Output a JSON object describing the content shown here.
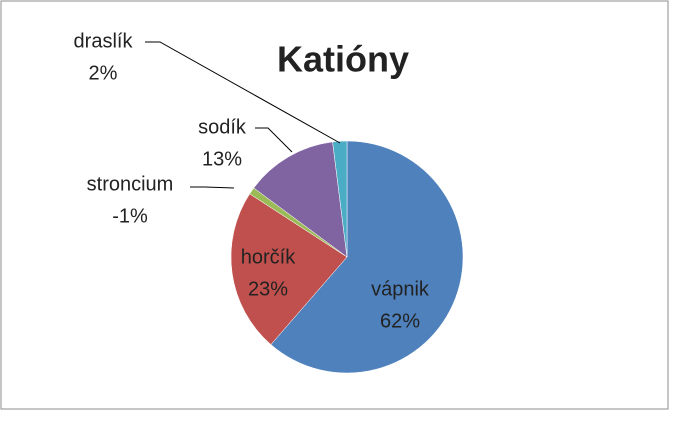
{
  "chart_data": {
    "type": "pie",
    "title": "Katióny",
    "categories": [
      "vápnik",
      "horčík",
      "stroncium",
      "sodík",
      "draslík"
    ],
    "values": [
      62,
      23,
      -1,
      13,
      2
    ],
    "value_labels": [
      "62%",
      "23%",
      "-1%",
      "13%",
      "2%"
    ],
    "colors": [
      "#4f81bd",
      "#c0504d",
      "#9bbb59",
      "#8064a2",
      "#4bacc6"
    ]
  }
}
